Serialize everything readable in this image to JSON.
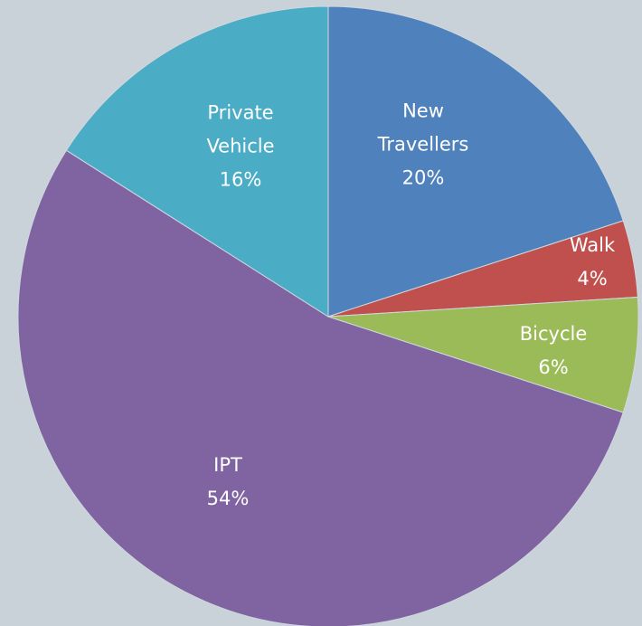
{
  "chart_data": {
    "type": "pie",
    "categories": [
      "New Travellers",
      "Walk",
      "Bicycle",
      "IPT",
      "Private Vehicle"
    ],
    "values": [
      20,
      4,
      6,
      54,
      16
    ],
    "value_labels": [
      "20%",
      "4%",
      "6%",
      "54%",
      "16%"
    ],
    "colors": [
      "#4f81bd",
      "#c0504d",
      "#9bbb59",
      "#8064a2",
      "#4bacc6"
    ]
  }
}
